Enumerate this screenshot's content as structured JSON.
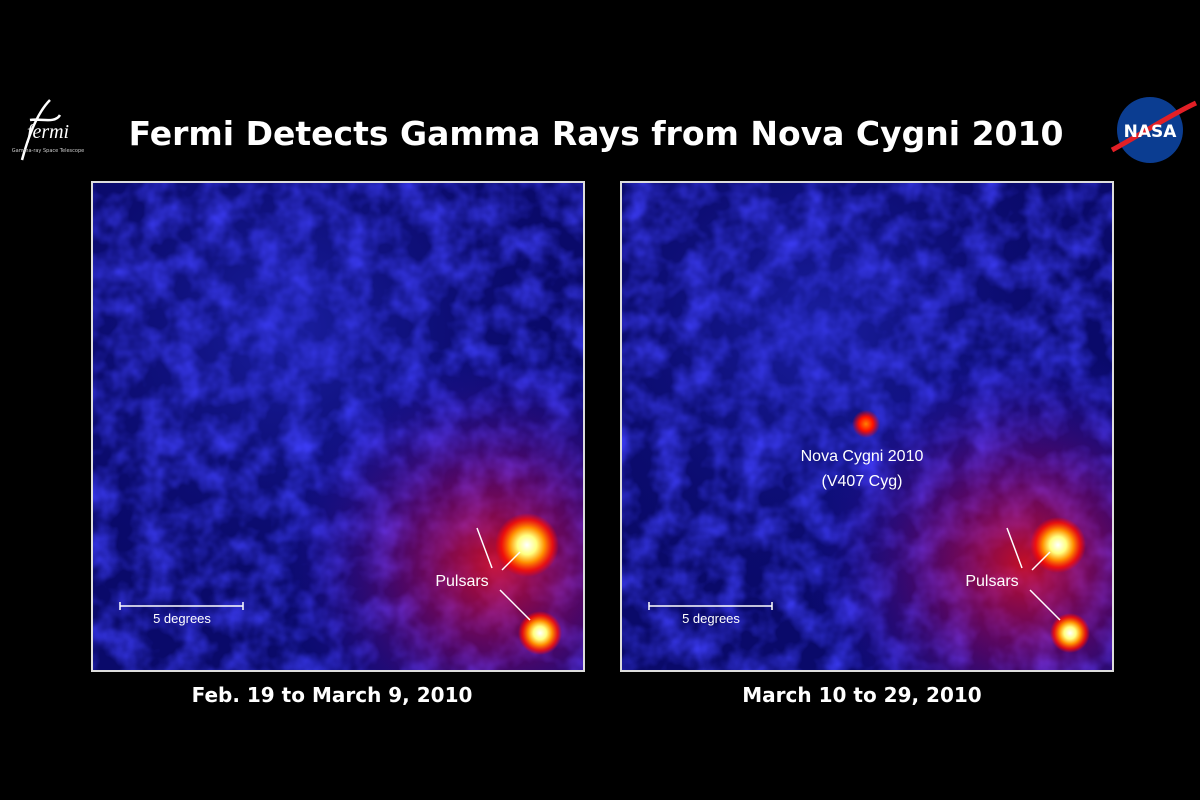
{
  "header": {
    "title": "Fermi Detects Gamma Rays from Nova Cygni 2010",
    "left_logo": {
      "name": "fermi",
      "subtitle": "Gamma-ray Space Telescope"
    },
    "right_logo": "NASA"
  },
  "panels": [
    {
      "caption": "Feb. 19 to March 9, 2010",
      "scale_label": "5 degrees",
      "labels": [
        "Pulsars"
      ]
    },
    {
      "caption": "March 10 to 29, 2010",
      "scale_label": "5 degrees",
      "labels": [
        "Nova Cygni 2010",
        "(V407 Cyg)",
        "Pulsars"
      ]
    }
  ]
}
